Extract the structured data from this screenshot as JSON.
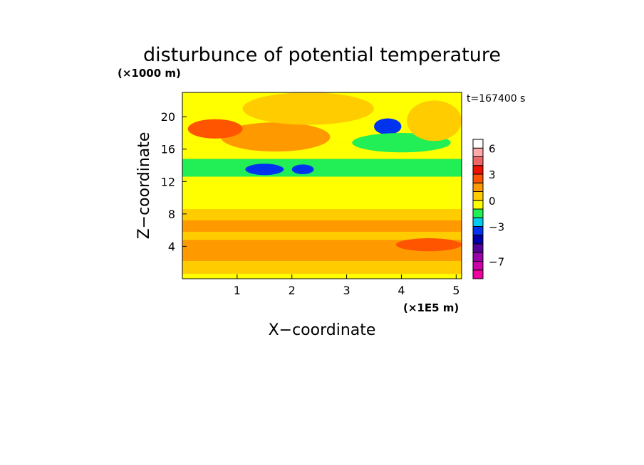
{
  "chart_data": {
    "type": "heatmap",
    "title": "disturbunce of potential temperature",
    "time_label": "t=167400 s",
    "xlabel": "X−coordinate",
    "ylabel": "Z−coordinate",
    "x_unit": "(×1E5 m)",
    "y_unit": "(×1000 m)",
    "xlim": [
      0,
      5.1
    ],
    "ylim": [
      0,
      23
    ],
    "x_ticks": [
      1,
      2,
      3,
      4,
      5
    ],
    "y_ticks": [
      4,
      8,
      12,
      16,
      20
    ],
    "colorbar": {
      "levels": [
        -9,
        -8,
        -7,
        -6,
        -5,
        -4,
        -3,
        -2,
        -1,
        0,
        1,
        2,
        3,
        4,
        5,
        6,
        7
      ],
      "tick_labels": [
        {
          "value": -7,
          "label": "−7"
        },
        {
          "value": -3,
          "label": "−3"
        },
        {
          "value": 0,
          "label": "0"
        },
        {
          "value": 3,
          "label": "3"
        },
        {
          "value": 6,
          "label": "6"
        }
      ],
      "colors": [
        "#ee00a0",
        "#cc00aa",
        "#9900aa",
        "#550099",
        "#0000aa",
        "#0033ee",
        "#00ccee",
        "#22ee55",
        "#ffff00",
        "#ffcc00",
        "#ff9900",
        "#ff5500",
        "#ee1100",
        "#ee6666",
        "#ffaaaa",
        "#ffffff"
      ]
    },
    "field": {
      "description_values": "disturbance in temperature units; regions listed in data units (x in 1E5 m, z in 1000 m)",
      "background": 0.5,
      "regions": [
        {
          "kind": "band",
          "z0": 0,
          "z1": 0.6,
          "value": -0.5
        },
        {
          "kind": "band",
          "z0": 0.6,
          "z1": 2.2,
          "value": 0.5
        },
        {
          "kind": "band",
          "z0": 2.2,
          "z1": 4.8,
          "value": 1.5
        },
        {
          "kind": "band",
          "z0": 4.8,
          "z1": 5.8,
          "value": 0.5
        },
        {
          "kind": "band",
          "z0": 5.8,
          "z1": 7.2,
          "value": 1.5
        },
        {
          "kind": "band",
          "z0": 7.2,
          "z1": 8.6,
          "value": 0.5
        },
        {
          "kind": "band",
          "z0": 8.6,
          "z1": 12.6,
          "value": -0.5
        },
        {
          "kind": "band",
          "z0": 12.6,
          "z1": 14.8,
          "value": -1.5
        },
        {
          "kind": "band",
          "z0": 14.8,
          "z1": 16.8,
          "value": -0.5
        },
        {
          "kind": "band",
          "z0": 16.8,
          "z1": 23,
          "value": -0.5
        },
        {
          "kind": "blob",
          "x": 1.5,
          "z": 13.5,
          "rx": 0.35,
          "rz": 0.7,
          "value": -3.5
        },
        {
          "kind": "blob",
          "x": 2.2,
          "z": 13.5,
          "rx": 0.2,
          "rz": 0.6,
          "value": -3.5
        },
        {
          "kind": "blob",
          "x": 3.75,
          "z": 18.8,
          "rx": 0.25,
          "rz": 1.0,
          "value": -3.5
        },
        {
          "kind": "blob",
          "x": 4.0,
          "z": 16.8,
          "rx": 0.9,
          "rz": 1.2,
          "value": -1.5
        },
        {
          "kind": "blob",
          "x": 1.7,
          "z": 17.5,
          "rx": 1.0,
          "rz": 1.8,
          "value": 1.5
        },
        {
          "kind": "blob",
          "x": 0.6,
          "z": 18.5,
          "rx": 0.5,
          "rz": 1.2,
          "value": 2.5
        },
        {
          "kind": "blob",
          "x": 4.6,
          "z": 19.5,
          "rx": 0.5,
          "rz": 2.5,
          "value": 0.5
        },
        {
          "kind": "blob",
          "x": 2.3,
          "z": 21.0,
          "rx": 1.2,
          "rz": 2.0,
          "value": 0.5
        },
        {
          "kind": "blob",
          "x": 4.5,
          "z": 4.2,
          "rx": 0.6,
          "rz": 0.8,
          "value": 2.5
        }
      ]
    }
  }
}
